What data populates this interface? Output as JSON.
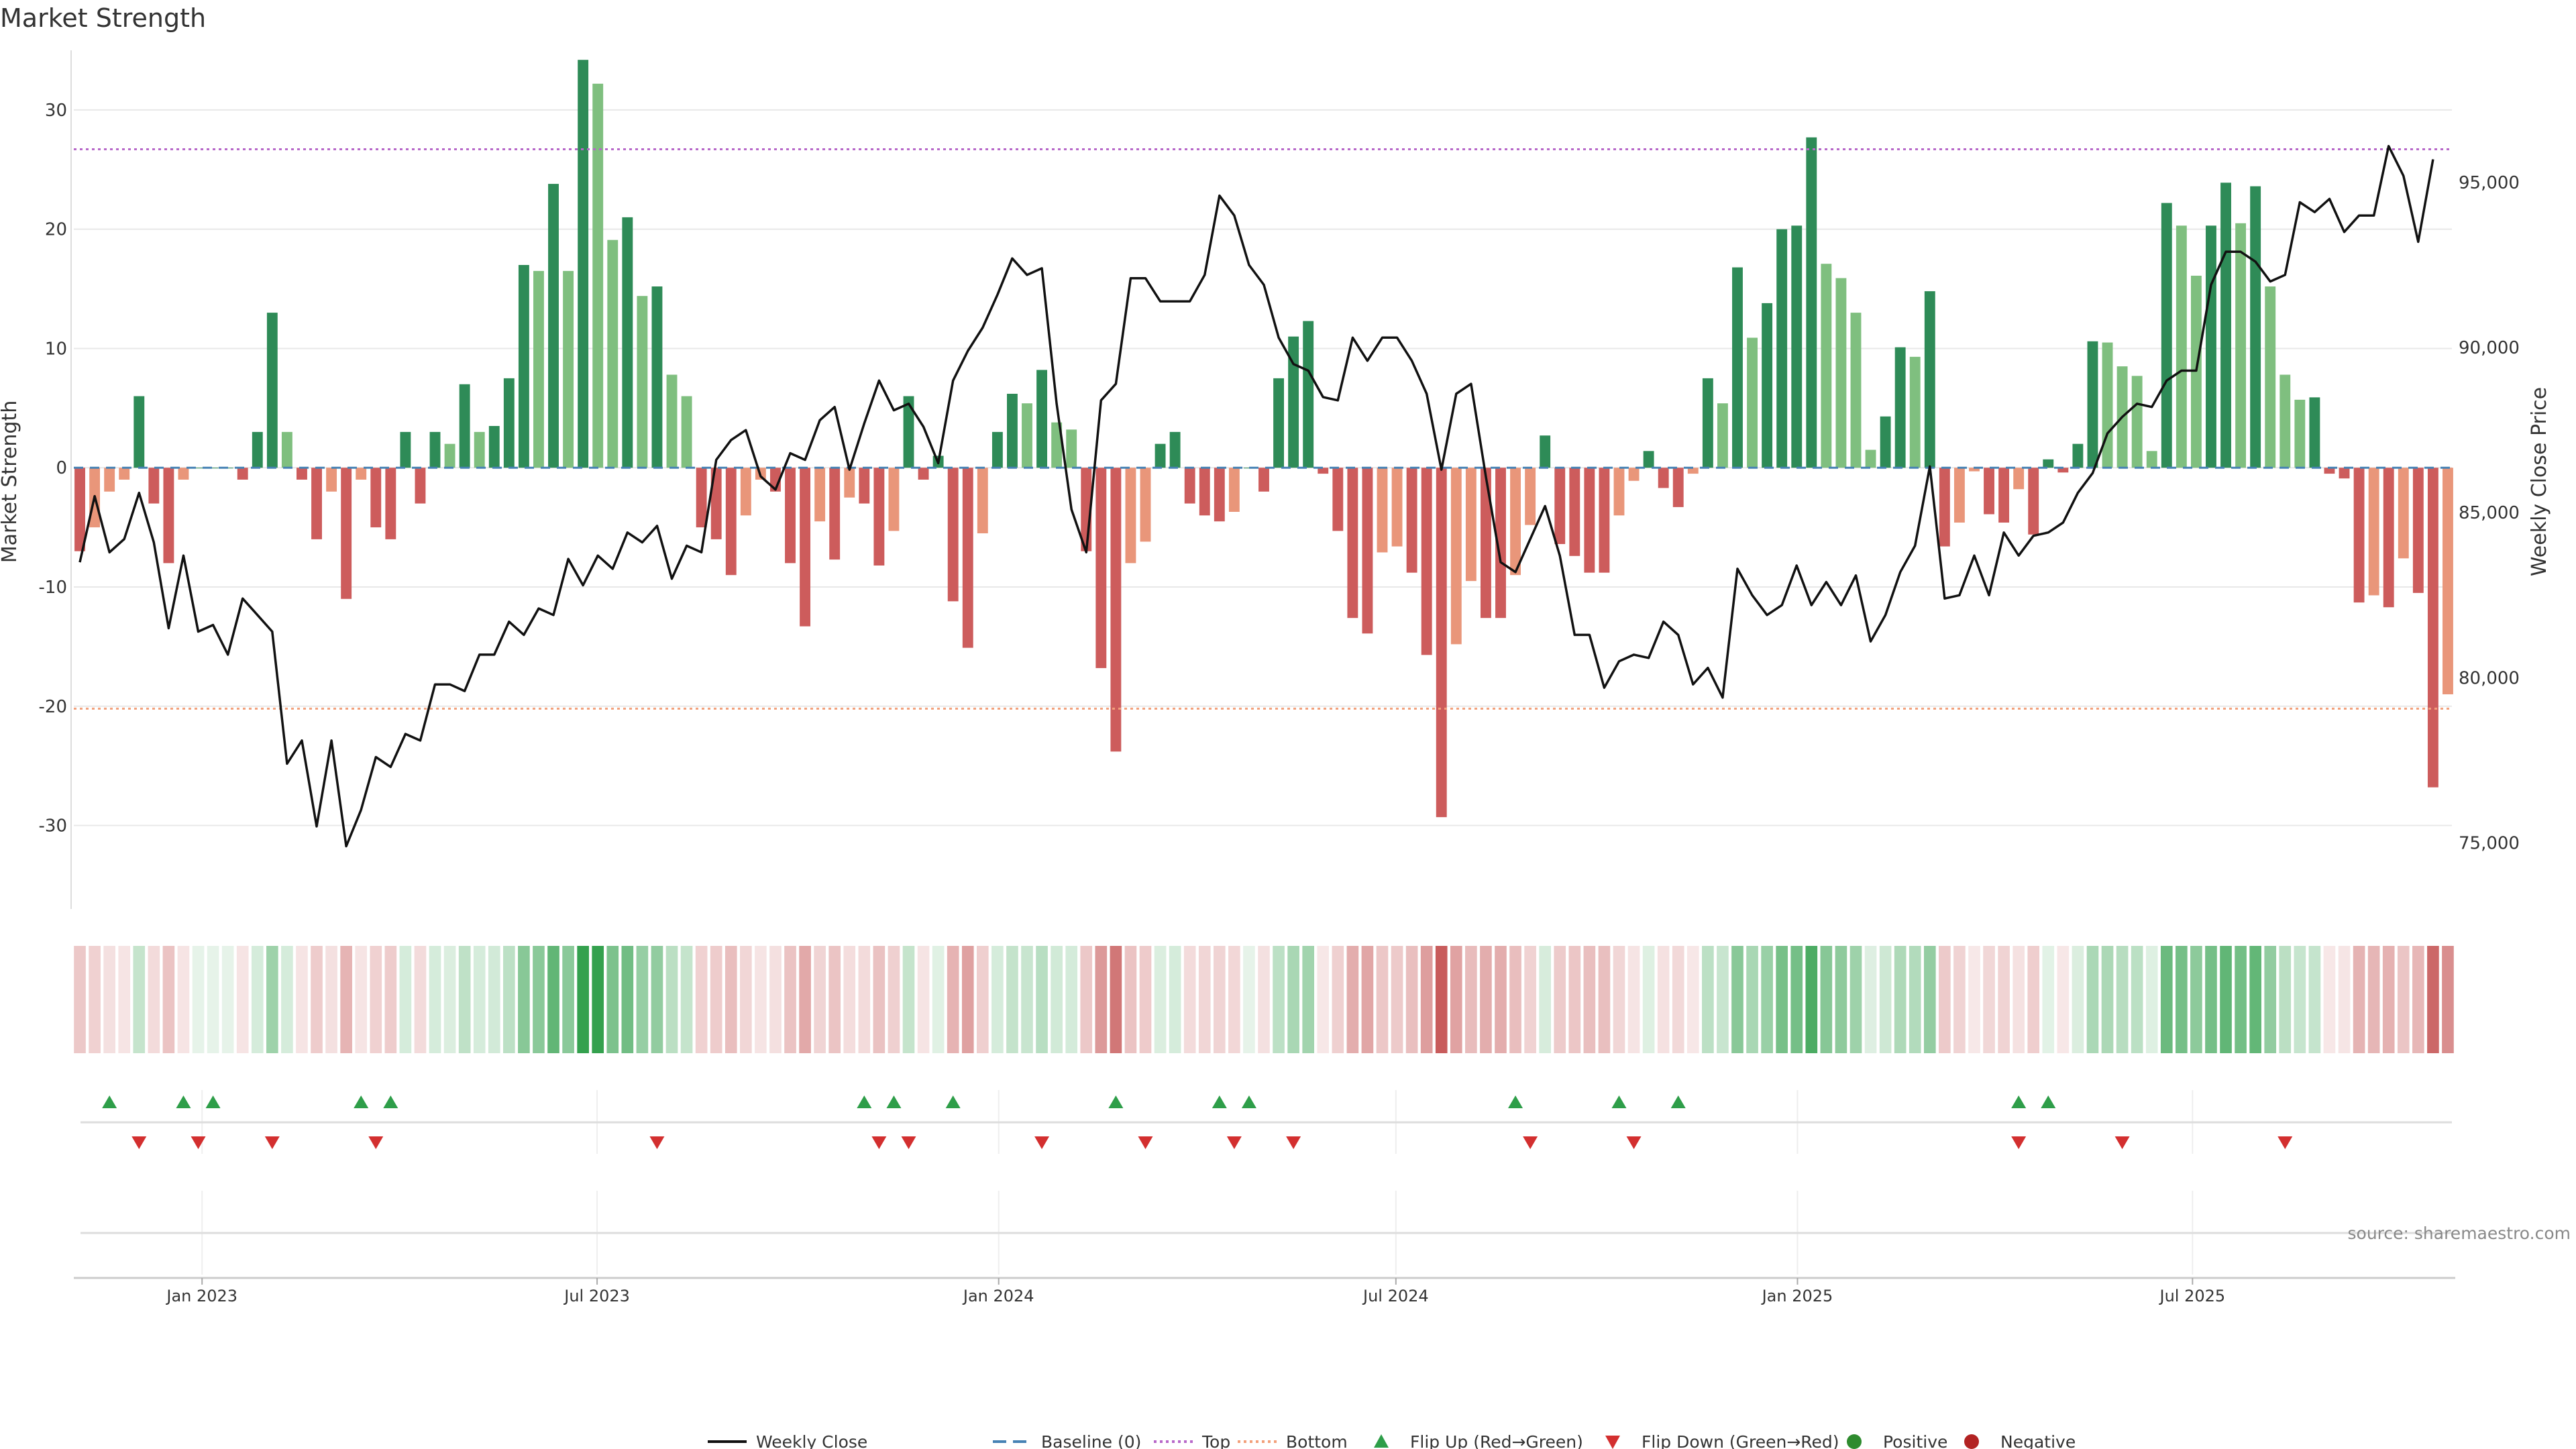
{
  "chart_data": {
    "type": "bar",
    "title": "Market Strength",
    "ylabel": "Market Strength",
    "y2label": "Weekly Close Price",
    "ylim": [
      -37,
      35
    ],
    "y2lim": [
      73000,
      99000
    ],
    "yticks": [
      -30,
      -20,
      -10,
      0,
      10,
      20,
      30
    ],
    "y2ticks": [
      75000,
      80000,
      85000,
      90000,
      95000
    ],
    "y2tick_labels": [
      "75,000",
      "80,000",
      "85,000",
      "90,000",
      "95,000"
    ],
    "x_start": "2022-11-06",
    "x_end": "2025-10-26",
    "xticks": [
      "2023-01-01",
      "2023-07-01",
      "2024-01-01",
      "2024-07-01",
      "2025-01-01",
      "2025-07-01"
    ],
    "xtick_labels": [
      "Jan 2023",
      "Jul 2023",
      "Jan 2024",
      "Jul 2024",
      "Jan 2025",
      "Jul 2025"
    ],
    "top_level": 26.7,
    "bottom_level": -20.2,
    "strength": [
      -7,
      -5,
      -2,
      -1,
      6,
      -3,
      -8,
      -1,
      0,
      0,
      0,
      -1,
      3,
      13,
      3,
      -1,
      -6,
      -2,
      -11,
      -1,
      -5,
      -6,
      3,
      -3,
      3,
      2,
      7,
      3,
      3.5,
      7.5,
      17,
      16.5,
      23.8,
      16.5,
      34.2,
      32.2,
      19.1,
      21,
      14.4,
      15.2,
      7.8,
      6,
      -5,
      -6,
      -9,
      -4,
      -1,
      -2,
      -8,
      -13.3,
      -4.5,
      -7.7,
      -2.5,
      -3,
      -8.2,
      -5.3,
      6,
      -1,
      1,
      -11.2,
      -15.1,
      -5.5,
      3,
      6.2,
      5.4,
      8.2,
      3.8,
      3.2,
      -7,
      -16.8,
      -23.8,
      -8,
      -6.2,
      2,
      3,
      -3,
      -4,
      -4.5,
      -3.7,
      0,
      -2,
      7.5,
      11,
      12.3,
      -0.5,
      -5.3,
      -12.6,
      -13.9,
      -7.1,
      -6.6,
      -8.8,
      -15.7,
      -29.3,
      -14.8,
      -9.5,
      -12.6,
      -12.6,
      -9,
      -4.8,
      2.7,
      -6.4,
      -7.4,
      -8.8,
      -8.8,
      -4,
      -1.1,
      1.4,
      -1.7,
      -3.3,
      -0.5,
      7.5,
      5.4,
      16.8,
      10.9,
      13.8,
      20,
      20.3,
      27.7,
      17.1,
      15.9,
      13,
      1.5,
      4.3,
      10.1,
      9.3,
      14.8,
      -6.6,
      -4.6,
      -0.3,
      -3.9,
      -4.6,
      -1.8,
      -5.6,
      0.7,
      -0.4,
      2,
      10.6,
      10.5,
      8.5,
      7.7,
      1.4,
      22.2,
      20.3,
      16.1,
      20.3,
      23.9,
      20.5,
      23.6,
      15.2,
      7.8,
      5.7,
      5.9,
      -0.5,
      -0.9,
      -11.3,
      -10.7,
      -11.7,
      -7.6,
      -10.5,
      -26.8,
      -19
    ],
    "weekly_close": [
      83500,
      85500,
      83800,
      84200,
      85600,
      84100,
      81500,
      83700,
      81400,
      81600,
      80700,
      82400,
      81900,
      81400,
      77400,
      78100,
      75500,
      78100,
      74900,
      76000,
      77600,
      77300,
      78300,
      78100,
      79800,
      79800,
      79600,
      80700,
      80700,
      81700,
      81300,
      82100,
      81900,
      83600,
      82800,
      83700,
      83300,
      84400,
      84100,
      84600,
      83000,
      84000,
      83800,
      86600,
      87200,
      87500,
      86100,
      85700,
      86800,
      86600,
      87800,
      88200,
      86300,
      87700,
      89000,
      88100,
      88300,
      87600,
      86500,
      89000,
      89900,
      90600,
      91600,
      92700,
      92200,
      92400,
      88300,
      85100,
      83800,
      88400,
      88900,
      92100,
      92100,
      91400,
      91400,
      91400,
      92200,
      94600,
      94000,
      92500,
      91900,
      90300,
      89500,
      89300,
      88500,
      88400,
      90300,
      89600,
      90300,
      90300,
      89600,
      88600,
      86300,
      88600,
      88900,
      86100,
      83500,
      83200,
      84200,
      85200,
      83700,
      81300,
      81300,
      79700,
      80500,
      80700,
      80600,
      81700,
      81300,
      79800,
      80300,
      79400,
      83300,
      82500,
      81900,
      82200,
      83400,
      82200,
      82900,
      82200,
      83100,
      81100,
      81900,
      83200,
      84000,
      86400,
      82400,
      82500,
      83700,
      82500,
      84400,
      83700,
      84300,
      84400,
      84700,
      85600,
      86200,
      87400,
      87900,
      88300,
      88200,
      89000,
      89300,
      89300,
      91900,
      92900,
      92900,
      92600,
      92000,
      92200,
      94400,
      94100,
      94500,
      93500,
      94000,
      94000,
      96100,
      95200,
      93200,
      95700
    ],
    "flip_up_weeks": [
      2,
      7,
      9,
      19,
      21,
      53,
      55,
      59,
      70,
      77,
      79,
      97,
      104,
      108,
      131,
      133
    ],
    "flip_down_weeks": [
      4,
      8,
      13,
      20,
      39,
      54,
      56,
      65,
      72,
      78,
      82,
      98,
      105,
      131,
      138,
      149
    ],
    "series": [
      {
        "name": "Weekly Close",
        "color": "#111111"
      },
      {
        "name": "Baseline (0)",
        "color": "#4682b4"
      },
      {
        "name": "Top",
        "color": "#b768c9"
      },
      {
        "name": "Bottom",
        "color": "#f2a07b"
      },
      {
        "name": "Flip Up (Red→Green)",
        "color": "#2e9e49"
      },
      {
        "name": "Flip Down (Green→Red)",
        "color": "#d32f2f"
      },
      {
        "name": "Positive",
        "color": "#2e8b2e"
      },
      {
        "name": "Negative",
        "color": "#b22222"
      }
    ],
    "colors": {
      "pos_strong": "#2e8b57",
      "pos_weak": "#7fbf7f",
      "neg_strong": "#cd5c5c",
      "neg_weak": "#e9967a"
    },
    "grid": true,
    "legend_position": "bottom-center",
    "source": "source: sharemaestro.com"
  }
}
